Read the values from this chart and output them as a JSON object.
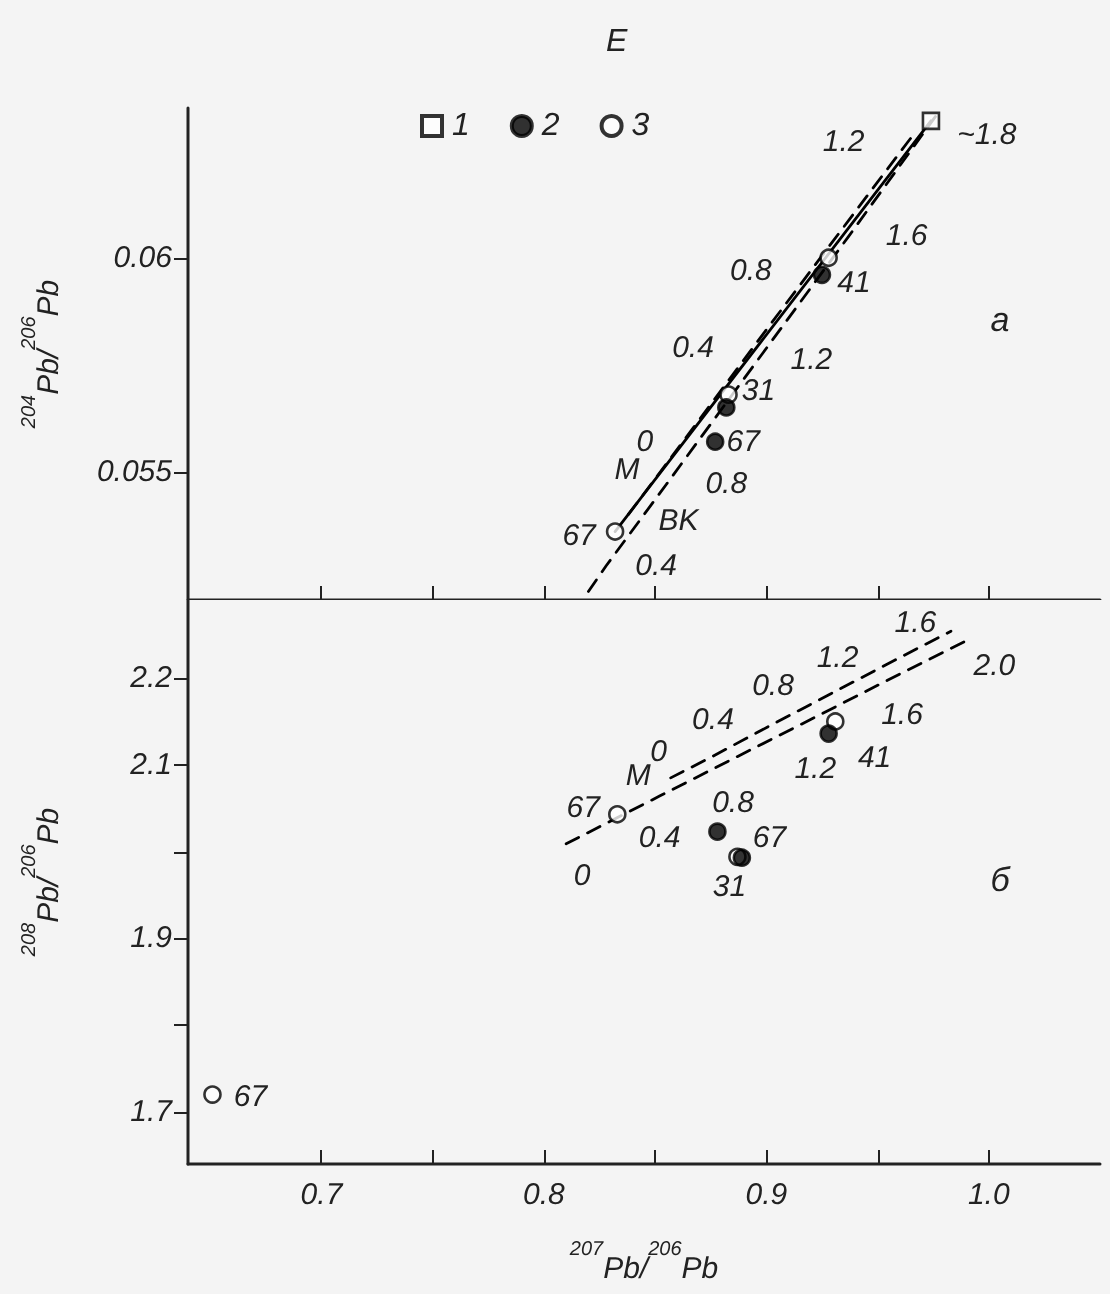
{
  "chart_data": [
    {
      "type": "scatter",
      "title": "E",
      "ylabel": "$^{204}$Pb/$^{206}$Pb",
      "legend": "top",
      "tick_labels": "y",
      "xlim": [
        0.64,
        1.05
      ],
      "xticks": [
        {
          "value": 0.7,
          "label": null
        },
        {
          "value": 0.75,
          "label": null
        },
        {
          "value": 0.8,
          "label": null
        },
        {
          "value": 0.85,
          "label": null
        },
        {
          "value": 0.9,
          "label": null
        },
        {
          "value": 0.95,
          "label": null
        },
        {
          "value": 1,
          "label": null
        }
      ],
      "ylim": [
        0.052,
        0.0635
      ],
      "yticks": [
        0.055,
        0.06
      ],
      "series": [
        {
          "name": "1",
          "type": "scatter",
          "marker": "square",
          "color": "#ffffff",
          "x": [
            0.974
          ],
          "values": [
            0.0632
          ]
        },
        {
          "name": "2",
          "type": "scatter",
          "marker": "circle",
          "color": "#000000",
          "x": [
            0.925,
            0.882,
            0.877
          ],
          "values": [
            0.0596,
            0.0565,
            0.0557
          ]
        },
        {
          "name": "3",
          "type": "scatter",
          "marker": "circle",
          "color": "#ffffff",
          "x": [
            0.928,
            0.883,
            0.832
          ],
          "values": [
            0.06,
            0.0568,
            0.0536
          ]
        },
        {
          "type": "line",
          "marker": "none",
          "line_style": "dashed",
          "color": "#000000",
          "x": [
            0.838,
            0.8625,
            0.894,
            0.92,
            0.9635,
            0.965
          ],
          "values": [
            0.054,
            0.0557,
            0.0579,
            0.0597,
            0.0627,
            0.0628
          ]
        },
        {
          "name": "M",
          "type": "line",
          "marker": "none",
          "line_style": "solid",
          "color": "#000000",
          "x": [
            0.832,
            0.974
          ],
          "values": [
            0.0536,
            0.0632
          ]
        },
        {
          "name": "BK",
          "type": "line",
          "marker": "none",
          "line_style": "dashed",
          "color": "#000000",
          "x": [
            0.82,
            0.828,
            0.855,
            0.896,
            0.937,
            0.976
          ],
          "values": [
            0.0522,
            0.0528,
            0.0547,
            0.0576,
            0.0605,
            0.0633
          ]
        }
      ],
      "annotations": [
        {
          "text": "0",
          "x": 0.8625,
          "y": 0.0557
        },
        {
          "text": "0.4",
          "x": 0.894,
          "y": 0.0579
        },
        {
          "text": "0.8",
          "x": 0.92,
          "y": 0.0597
        },
        {
          "text": "1.2",
          "x": 0.9635,
          "y": 0.0627
        },
        {
          "text": "0.4",
          "x": 0.828,
          "y": 0.0528
        },
        {
          "text": "0.8",
          "x": 0.855,
          "y": 0.0547
        },
        {
          "text": "1.2",
          "x": 0.896,
          "y": 0.0576
        },
        {
          "text": "1.6",
          "x": 0.937,
          "y": 0.0605
        },
        {
          "text": "~1.8",
          "x": 0.974,
          "y": 0.0632
        },
        {
          "text": "41",
          "x": 0.925,
          "y": 0.0596
        },
        {
          "text": "31",
          "x": 0.883,
          "y": 0.0568
        },
        {
          "text": "67",
          "x": 0.877,
          "y": 0.0557
        },
        {
          "text": "67",
          "x": 0.832,
          "y": 0.0536
        },
        "a"
      ]
    },
    {
      "type": "scatter",
      "xlabel": "$^{207}$Pb/$^{206}$Pb",
      "ylabel": "$^{208}$Pb/$^{206}$Pb",
      "xlim": [
        0.64,
        1.05
      ],
      "xticks": [
        0.7,
        {
          "value": 0.75,
          "label": null
        },
        0.8,
        {
          "value": 0.85,
          "label": null
        },
        0.9,
        {
          "value": 0.95,
          "label": null
        },
        {
          "value": 1,
          "label": "1.0"
        }
      ],
      "ylim": [
        1.64,
        2.29
      ],
      "yticks": [
        1.7,
        {
          "value": 1.8,
          "label": null
        },
        1.9,
        {
          "value": 2.0,
          "label": null
        },
        2.1,
        2.2
      ],
      "series": [
        {
          "name": "2",
          "type": "scatter",
          "marker": "circle",
          "color": "#000000",
          "x": [
            0.928,
            0.889,
            0.878
          ],
          "values": [
            2.136,
            1.993,
            2.023
          ]
        },
        {
          "name": "3",
          "type": "scatter",
          "marker": "circle",
          "color": "#ffffff",
          "x": [
            0.931,
            0.887,
            0.833,
            0.651
          ],
          "values": [
            2.15,
            1.994,
            2.043,
            1.72
          ]
        },
        {
          "type": "line",
          "marker": "none",
          "line_style": "dashed",
          "color": "#000000",
          "x": [
            0.857,
            0.876,
            0.903,
            0.932,
            0.967,
            0.983
          ],
          "values": [
            2.085,
            2.11,
            2.147,
            2.186,
            2.233,
            2.254
          ]
        },
        {
          "name": "M",
          "type": "line",
          "marker": "none",
          "line_style": "dashed",
          "color": "#000000",
          "x": [
            0.81,
            0.852,
            0.885,
            0.922,
            0.961,
            0.989
          ],
          "values": [
            2.009,
            2.064,
            2.107,
            2.155,
            2.206,
            2.242
          ]
        }
      ],
      "annotations": [
        {
          "text": "0",
          "x": 0.857,
          "y": 2.085
        },
        {
          "text": "0.4",
          "x": 0.876,
          "y": 2.11
        },
        {
          "text": "0.8",
          "x": 0.903,
          "y": 2.147
        },
        {
          "text": "1.2",
          "x": 0.932,
          "y": 2.186
        },
        {
          "text": "1.6",
          "x": 0.967,
          "y": 2.233
        },
        {
          "text": "0",
          "x": 0.81,
          "y": 2.009
        },
        {
          "text": "0.4",
          "x": 0.852,
          "y": 2.064
        },
        {
          "text": "0.8",
          "x": 0.885,
          "y": 2.107
        },
        {
          "text": "1.2",
          "x": 0.922,
          "y": 2.155
        },
        {
          "text": "1.6",
          "x": 0.961,
          "y": 2.206
        },
        {
          "text": "2.0",
          "x": 0.989,
          "y": 2.242
        },
        {
          "text": "41",
          "x": 0.928,
          "y": 2.136
        },
        {
          "text": "67",
          "x": 0.878,
          "y": 2.023
        },
        {
          "text": "31",
          "x": 0.887,
          "y": 1.994
        },
        {
          "text": "67",
          "x": 0.833,
          "y": 2.043
        },
        {
          "text": "67",
          "x": 0.651,
          "y": 1.72
        },
        "б"
      ]
    }
  ]
}
